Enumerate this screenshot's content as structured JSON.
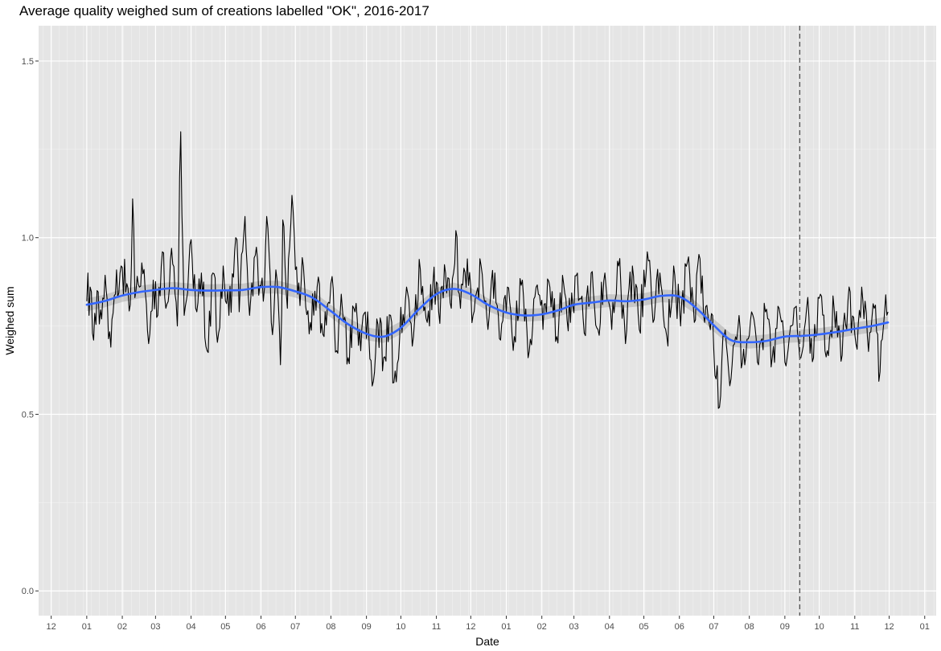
{
  "chart_data": {
    "type": "line",
    "title": "Average quality weighed sum of creations labelled \"OK\", 2016-2017",
    "xlabel": "Date",
    "ylabel": "Weighed sum",
    "ylim": [
      -0.07,
      1.6
    ],
    "xlim": [
      "2015-11-20",
      "2018-01-11"
    ],
    "y_ticks": [
      0.0,
      0.5,
      1.0,
      1.5
    ],
    "y_tick_labels": [
      "0.0",
      "0.5",
      "1.0",
      "1.5"
    ],
    "x_ticks": [
      {
        "date": "2015-12-01",
        "label": "12"
      },
      {
        "date": "2016-01-01",
        "label": "01"
      },
      {
        "date": "2016-02-01",
        "label": "02"
      },
      {
        "date": "2016-03-01",
        "label": "03"
      },
      {
        "date": "2016-04-01",
        "label": "04"
      },
      {
        "date": "2016-05-01",
        "label": "05"
      },
      {
        "date": "2016-06-01",
        "label": "06"
      },
      {
        "date": "2016-07-01",
        "label": "07"
      },
      {
        "date": "2016-08-01",
        "label": "08"
      },
      {
        "date": "2016-09-01",
        "label": "09"
      },
      {
        "date": "2016-10-01",
        "label": "10"
      },
      {
        "date": "2016-11-01",
        "label": "11"
      },
      {
        "date": "2016-12-01",
        "label": "12"
      },
      {
        "date": "2017-01-01",
        "label": "01"
      },
      {
        "date": "2017-02-01",
        "label": "02"
      },
      {
        "date": "2017-03-01",
        "label": "03"
      },
      {
        "date": "2017-04-01",
        "label": "04"
      },
      {
        "date": "2017-05-01",
        "label": "05"
      },
      {
        "date": "2017-06-01",
        "label": "06"
      },
      {
        "date": "2017-07-01",
        "label": "07"
      },
      {
        "date": "2017-08-01",
        "label": "08"
      },
      {
        "date": "2017-09-01",
        "label": "09"
      },
      {
        "date": "2017-10-01",
        "label": "10"
      },
      {
        "date": "2017-11-01",
        "label": "11"
      },
      {
        "date": "2017-12-01",
        "label": "12"
      },
      {
        "date": "2018-01-01",
        "label": "01"
      }
    ],
    "grid": true,
    "vline": {
      "date": "2017-09-14",
      "style": "dashed",
      "color": "#4d4d4d"
    },
    "series": [
      {
        "name": "",
        "kind": "daily",
        "color": "#000000",
        "x_start": "2016-01-01",
        "x_end": "2017-11-30",
        "points": [
          [
            "2016-01-01",
            0.82
          ],
          [
            "2016-01-02",
            0.9
          ],
          [
            "2016-01-03",
            0.78
          ],
          [
            "2016-01-04",
            0.86
          ],
          [
            "2016-01-07",
            0.71
          ],
          [
            "2016-01-10",
            0.85
          ],
          [
            "2016-01-14",
            0.77
          ],
          [
            "2016-01-18",
            0.85
          ],
          [
            "2016-01-22",
            0.69
          ],
          [
            "2016-01-26",
            0.84
          ],
          [
            "2016-01-31",
            0.92
          ],
          [
            "2016-02-05",
            0.87
          ],
          [
            "2016-02-08",
            0.81
          ],
          [
            "2016-02-10",
            1.11
          ],
          [
            "2016-02-12",
            0.83
          ],
          [
            "2016-02-16",
            0.86
          ],
          [
            "2016-02-20",
            0.91
          ],
          [
            "2016-02-24",
            0.7
          ],
          [
            "2016-02-28",
            0.88
          ],
          [
            "2016-03-03",
            0.78
          ],
          [
            "2016-03-07",
            0.96
          ],
          [
            "2016-03-10",
            0.8
          ],
          [
            "2016-03-15",
            0.97
          ],
          [
            "2016-03-20",
            0.75
          ],
          [
            "2016-03-23",
            1.3
          ],
          [
            "2016-03-26",
            0.78
          ],
          [
            "2016-03-31",
            0.98
          ],
          [
            "2016-04-05",
            0.8
          ],
          [
            "2016-04-10",
            0.9
          ],
          [
            "2016-04-15",
            0.68
          ],
          [
            "2016-04-20",
            0.9
          ],
          [
            "2016-04-25",
            0.73
          ],
          [
            "2016-04-29",
            0.92
          ],
          [
            "2016-05-04",
            0.78
          ],
          [
            "2016-05-10",
            1.0
          ],
          [
            "2016-05-13",
            0.79
          ],
          [
            "2016-05-18",
            1.06
          ],
          [
            "2016-05-22",
            0.78
          ],
          [
            "2016-05-27",
            0.95
          ],
          [
            "2016-06-03",
            0.82
          ],
          [
            "2016-06-06",
            1.06
          ],
          [
            "2016-06-10",
            0.76
          ],
          [
            "2016-06-15",
            0.88
          ],
          [
            "2016-06-18",
            0.64
          ],
          [
            "2016-06-20",
            1.05
          ],
          [
            "2016-06-24",
            0.8
          ],
          [
            "2016-06-28",
            1.12
          ],
          [
            "2016-07-03",
            0.84
          ],
          [
            "2016-07-08",
            0.92
          ],
          [
            "2016-07-14",
            0.76
          ],
          [
            "2016-07-20",
            0.86
          ],
          [
            "2016-07-26",
            0.72
          ],
          [
            "2016-08-01",
            0.87
          ],
          [
            "2016-08-06",
            0.68
          ],
          [
            "2016-08-10",
            0.84
          ],
          [
            "2016-08-16",
            0.66
          ],
          [
            "2016-08-21",
            0.8
          ],
          [
            "2016-08-27",
            0.68
          ],
          [
            "2016-09-02",
            0.79
          ],
          [
            "2016-09-06",
            0.58
          ],
          [
            "2016-09-10",
            0.77
          ],
          [
            "2016-09-16",
            0.66
          ],
          [
            "2016-09-22",
            0.78
          ],
          [
            "2016-09-25",
            0.59
          ],
          [
            "2016-09-30",
            0.72
          ],
          [
            "2016-10-06",
            0.86
          ],
          [
            "2016-10-12",
            0.72
          ],
          [
            "2016-10-18",
            0.91
          ],
          [
            "2016-10-24",
            0.76
          ],
          [
            "2016-10-29",
            0.87
          ],
          [
            "2016-11-03",
            0.79
          ],
          [
            "2016-11-09",
            0.9
          ],
          [
            "2016-11-14",
            0.8
          ],
          [
            "2016-11-18",
            1.02
          ],
          [
            "2016-11-22",
            0.8
          ],
          [
            "2016-11-28",
            0.94
          ],
          [
            "2016-12-03",
            0.78
          ],
          [
            "2016-12-10",
            0.92
          ],
          [
            "2016-12-16",
            0.74
          ],
          [
            "2016-12-22",
            0.9
          ],
          [
            "2016-12-27",
            0.71
          ],
          [
            "2017-01-02",
            0.86
          ],
          [
            "2017-01-08",
            0.72
          ],
          [
            "2017-01-15",
            0.88
          ],
          [
            "2017-01-20",
            0.66
          ],
          [
            "2017-01-27",
            0.86
          ],
          [
            "2017-02-02",
            0.74
          ],
          [
            "2017-02-08",
            0.86
          ],
          [
            "2017-02-14",
            0.72
          ],
          [
            "2017-02-20",
            0.87
          ],
          [
            "2017-02-26",
            0.76
          ],
          [
            "2017-03-04",
            0.9
          ],
          [
            "2017-03-10",
            0.73
          ],
          [
            "2017-03-16",
            0.9
          ],
          [
            "2017-03-22",
            0.74
          ],
          [
            "2017-03-28",
            0.9
          ],
          [
            "2017-04-03",
            0.74
          ],
          [
            "2017-04-09",
            0.92
          ],
          [
            "2017-04-15",
            0.7
          ],
          [
            "2017-04-21",
            0.92
          ],
          [
            "2017-04-27",
            0.74
          ],
          [
            "2017-05-04",
            0.96
          ],
          [
            "2017-05-09",
            0.76
          ],
          [
            "2017-05-15",
            0.9
          ],
          [
            "2017-05-21",
            0.72
          ],
          [
            "2017-05-27",
            0.92
          ],
          [
            "2017-06-02",
            0.75
          ],
          [
            "2017-06-08",
            0.93
          ],
          [
            "2017-06-14",
            0.76
          ],
          [
            "2017-06-19",
            0.94
          ],
          [
            "2017-06-23",
            0.76
          ],
          [
            "2017-06-30",
            0.78
          ],
          [
            "2017-07-03",
            0.6
          ],
          [
            "2017-07-06",
            0.52
          ],
          [
            "2017-07-10",
            0.72
          ],
          [
            "2017-07-16",
            0.6
          ],
          [
            "2017-07-22",
            0.74
          ],
          [
            "2017-07-28",
            0.64
          ],
          [
            "2017-08-03",
            0.79
          ],
          [
            "2017-08-09",
            0.64
          ],
          [
            "2017-08-15",
            0.79
          ],
          [
            "2017-08-21",
            0.66
          ],
          [
            "2017-08-27",
            0.8
          ],
          [
            "2017-09-03",
            0.66
          ],
          [
            "2017-09-09",
            0.8
          ],
          [
            "2017-09-15",
            0.66
          ],
          [
            "2017-09-20",
            0.8
          ],
          [
            "2017-09-26",
            0.66
          ],
          [
            "2017-10-02",
            0.84
          ],
          [
            "2017-10-08",
            0.68
          ],
          [
            "2017-10-14",
            0.8
          ],
          [
            "2017-10-20",
            0.65
          ],
          [
            "2017-10-26",
            0.82
          ],
          [
            "2017-11-02",
            0.7
          ],
          [
            "2017-11-07",
            0.86
          ],
          [
            "2017-11-12",
            0.72
          ],
          [
            "2017-11-18",
            0.8
          ],
          [
            "2017-11-23",
            0.62
          ],
          [
            "2017-11-27",
            0.79
          ],
          [
            "2017-11-30",
            0.79
          ]
        ]
      },
      {
        "name": "",
        "kind": "smooth",
        "color": "#3366ff",
        "band_color": "#999999",
        "points": [
          [
            "2016-01-01",
            0.81
          ],
          [
            "2016-01-16",
            0.82
          ],
          [
            "2016-02-01",
            0.836
          ],
          [
            "2016-02-16",
            0.846
          ],
          [
            "2016-03-01",
            0.852
          ],
          [
            "2016-03-16",
            0.857
          ],
          [
            "2016-04-01",
            0.852
          ],
          [
            "2016-04-16",
            0.85
          ],
          [
            "2016-05-01",
            0.851
          ],
          [
            "2016-05-16",
            0.852
          ],
          [
            "2016-06-01",
            0.86
          ],
          [
            "2016-06-16",
            0.86
          ],
          [
            "2016-07-01",
            0.848
          ],
          [
            "2016-07-16",
            0.83
          ],
          [
            "2016-08-01",
            0.792
          ],
          [
            "2016-08-16",
            0.755
          ],
          [
            "2016-09-01",
            0.728
          ],
          [
            "2016-09-16",
            0.72
          ],
          [
            "2016-10-01",
            0.745
          ],
          [
            "2016-10-16",
            0.795
          ],
          [
            "2016-11-01",
            0.84
          ],
          [
            "2016-11-16",
            0.855
          ],
          [
            "2016-12-01",
            0.84
          ],
          [
            "2016-12-16",
            0.81
          ],
          [
            "2017-01-01",
            0.788
          ],
          [
            "2017-01-16",
            0.78
          ],
          [
            "2017-02-01",
            0.783
          ],
          [
            "2017-02-16",
            0.795
          ],
          [
            "2017-03-01",
            0.81
          ],
          [
            "2017-03-16",
            0.816
          ],
          [
            "2017-04-01",
            0.822
          ],
          [
            "2017-04-16",
            0.82
          ],
          [
            "2017-05-01",
            0.825
          ],
          [
            "2017-05-16",
            0.835
          ],
          [
            "2017-06-01",
            0.833
          ],
          [
            "2017-06-16",
            0.8
          ],
          [
            "2017-07-01",
            0.752
          ],
          [
            "2017-07-16",
            0.71
          ],
          [
            "2017-08-01",
            0.704
          ],
          [
            "2017-08-16",
            0.708
          ],
          [
            "2017-09-01",
            0.72
          ],
          [
            "2017-09-16",
            0.722
          ],
          [
            "2017-10-01",
            0.726
          ],
          [
            "2017-10-16",
            0.733
          ],
          [
            "2017-11-01",
            0.742
          ],
          [
            "2017-11-16",
            0.75
          ],
          [
            "2017-11-30",
            0.76
          ]
        ]
      }
    ]
  }
}
